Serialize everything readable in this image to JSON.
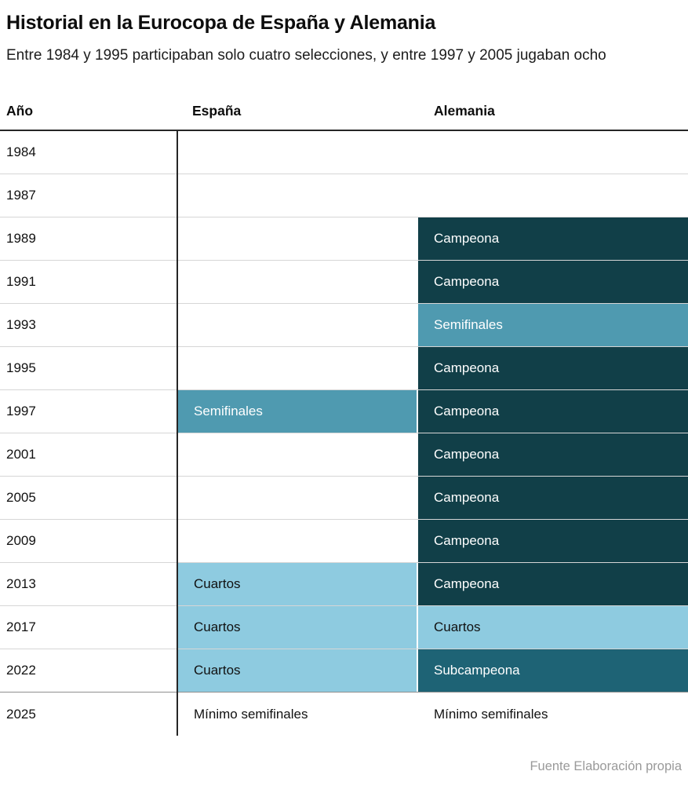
{
  "header": {
    "title": "Historial en la Eurocopa de España y Alemania",
    "subtitle": "Entre 1984 y 1995 participaban solo cuatro selecciones, y entre 1997 y 2005 jugaban ocho"
  },
  "table": {
    "columns": [
      "Año",
      "España",
      "Alemania"
    ],
    "statuses": {
      "campeona": {
        "bg": "#113f48",
        "text": "#ffffff"
      },
      "subcampeona": {
        "bg": "#1e6375",
        "text": "#ffffff"
      },
      "semifinales": {
        "bg": "#4f9ab0",
        "text": "#ffffff"
      },
      "cuartos": {
        "bg": "#8ecbe0",
        "text": "#111111"
      },
      "plain": {
        "bg": "transparent",
        "text": "#111111"
      }
    },
    "rows": [
      {
        "year": "1984",
        "espana": null,
        "alemania": null
      },
      {
        "year": "1987",
        "espana": null,
        "alemania": null
      },
      {
        "year": "1989",
        "espana": null,
        "alemania": {
          "label": "Campeona",
          "status": "campeona"
        }
      },
      {
        "year": "1991",
        "espana": null,
        "alemania": {
          "label": "Campeona",
          "status": "campeona"
        }
      },
      {
        "year": "1993",
        "espana": null,
        "alemania": {
          "label": "Semifinales",
          "status": "semifinales"
        }
      },
      {
        "year": "1995",
        "espana": null,
        "alemania": {
          "label": "Campeona",
          "status": "campeona"
        }
      },
      {
        "year": "1997",
        "espana": {
          "label": "Semifinales",
          "status": "semifinales"
        },
        "alemania": {
          "label": "Campeona",
          "status": "campeona"
        }
      },
      {
        "year": "2001",
        "espana": null,
        "alemania": {
          "label": "Campeona",
          "status": "campeona"
        }
      },
      {
        "year": "2005",
        "espana": null,
        "alemania": {
          "label": "Campeona",
          "status": "campeona"
        }
      },
      {
        "year": "2009",
        "espana": null,
        "alemania": {
          "label": "Campeona",
          "status": "campeona"
        }
      },
      {
        "year": "2013",
        "espana": {
          "label": "Cuartos",
          "status": "cuartos"
        },
        "alemania": {
          "label": "Campeona",
          "status": "campeona"
        }
      },
      {
        "year": "2017",
        "espana": {
          "label": "Cuartos",
          "status": "cuartos"
        },
        "alemania": {
          "label": "Cuartos",
          "status": "cuartos"
        }
      },
      {
        "year": "2022",
        "espana": {
          "label": "Cuartos",
          "status": "cuartos"
        },
        "alemania": {
          "label": "Subcampeona",
          "status": "subcampeona"
        }
      },
      {
        "year": "2025",
        "espana": {
          "label": "Mínimo semifinales",
          "status": "plain"
        },
        "alemania": {
          "label": "Mínimo semifinales",
          "status": "plain"
        }
      }
    ]
  },
  "footer": {
    "source": "Fuente Elaboración propia"
  },
  "chart_data": {
    "type": "table",
    "title": "Historial en la Eurocopa de España y Alemania",
    "subtitle": "Entre 1984 y 1995 participaban solo cuatro selecciones, y entre 1997 y 2005 jugaban ocho",
    "categories": [
      "1984",
      "1987",
      "1989",
      "1991",
      "1993",
      "1995",
      "1997",
      "2001",
      "2005",
      "2009",
      "2013",
      "2017",
      "2022",
      "2025"
    ],
    "series": [
      {
        "name": "España",
        "values": [
          null,
          null,
          null,
          null,
          null,
          null,
          "Semifinales",
          null,
          null,
          null,
          "Cuartos",
          "Cuartos",
          "Cuartos",
          "Mínimo semifinales"
        ]
      },
      {
        "name": "Alemania",
        "values": [
          null,
          null,
          "Campeona",
          "Campeona",
          "Semifinales",
          "Campeona",
          "Campeona",
          "Campeona",
          "Campeona",
          "Campeona",
          "Campeona",
          "Cuartos",
          "Subcampeona",
          "Mínimo semifinales"
        ]
      }
    ],
    "value_colors": {
      "Campeona": "#113f48",
      "Subcampeona": "#1e6375",
      "Semifinales": "#4f9ab0",
      "Cuartos": "#8ecbe0",
      "Mínimo semifinales": "none"
    },
    "legend": false,
    "source": "Fuente Elaboración propia"
  }
}
